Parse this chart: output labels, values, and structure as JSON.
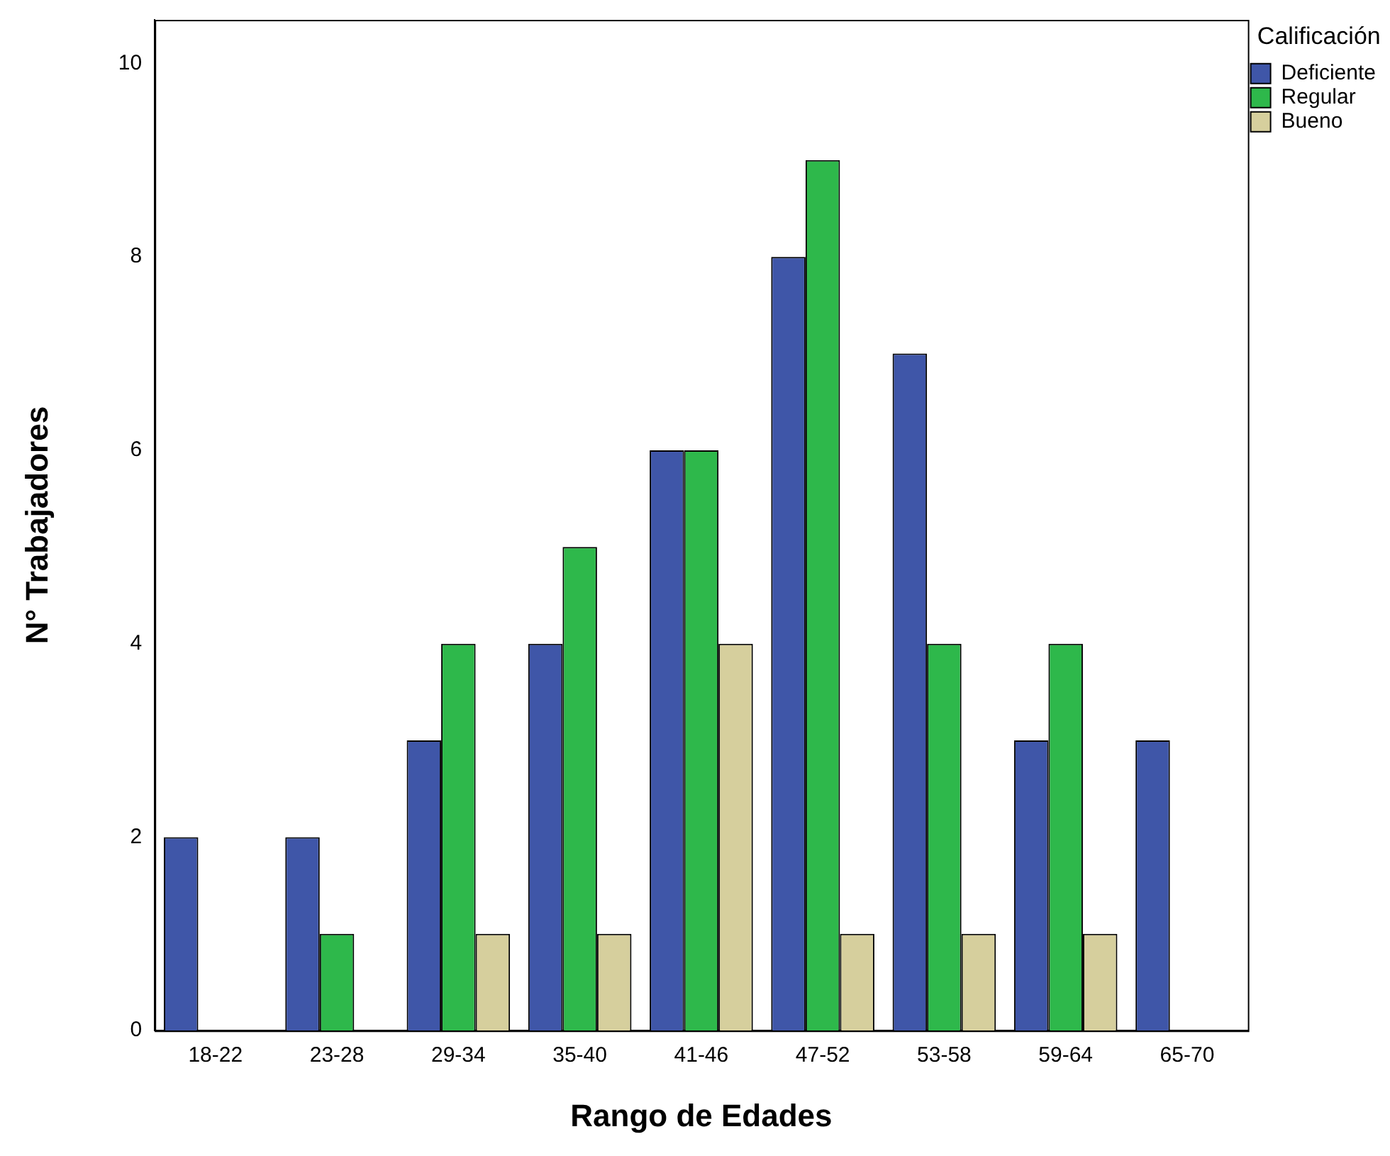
{
  "chart_data": {
    "type": "bar",
    "xlabel": "Rango de Edades",
    "ylabel": "N° Trabajadores",
    "legend_title": "Calificación",
    "categories": [
      "18-22",
      "23-28",
      "29-34",
      "35-40",
      "41-46",
      "47-52",
      "53-58",
      "59-64",
      "65-70"
    ],
    "series": [
      {
        "name": "Deficiente",
        "color": "#3f56a8",
        "values": [
          2,
          2,
          3,
          4,
          6,
          8,
          7,
          3,
          3
        ]
      },
      {
        "name": "Regular",
        "color": "#2eb84b",
        "values": [
          null,
          1,
          4,
          5,
          6,
          9,
          4,
          4,
          null
        ]
      },
      {
        "name": "Bueno",
        "color": "#d6cf9d",
        "values": [
          null,
          null,
          1,
          1,
          4,
          1,
          1,
          1,
          null
        ]
      }
    ],
    "ylim": [
      0,
      10.45
    ],
    "yticks": [
      0,
      2,
      4,
      6,
      8,
      10
    ],
    "grid": false,
    "legend": "top right"
  }
}
